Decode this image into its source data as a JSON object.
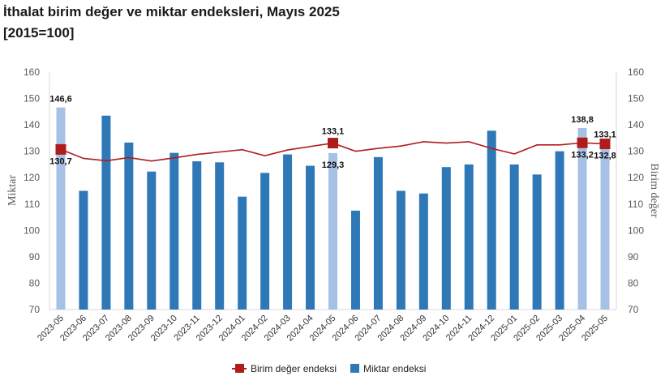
{
  "title": "İthalat birim değer ve miktar endeksleri, Mayıs 2025",
  "subtitle": "[2015=100]",
  "chart_data": {
    "type": "bar",
    "categories": [
      "2023-05",
      "2023-06",
      "2023-07",
      "2023-08",
      "2023-09",
      "2023-10",
      "2023-11",
      "2023-12",
      "2024-01",
      "2024-02",
      "2024-03",
      "2024-04",
      "2024-05",
      "2024-06",
      "2024-07",
      "2024-08",
      "2024-09",
      "2024-10",
      "2024-11",
      "2024-12",
      "2025-01",
      "2025-02",
      "2025-03",
      "2025-04",
      "2025-05"
    ],
    "ylabel_left": "Miktar",
    "ylabel_right": "Birim değer",
    "ylim": [
      70,
      160
    ],
    "yticks": [
      "70",
      "80",
      "90",
      "100",
      "110",
      "120",
      "130",
      "140",
      "150",
      "160"
    ],
    "grid": false,
    "legend_position": "bottom",
    "series": [
      {
        "name": "Birim değer endeksi",
        "type": "line",
        "color": "#b01c1c",
        "values": [
          130.7,
          127.3,
          126.4,
          127.6,
          126.3,
          127.5,
          128.8,
          129.7,
          130.6,
          128.3,
          130.5,
          131.8,
          133.1,
          130.0,
          131.1,
          132.0,
          133.6,
          133.1,
          133.6,
          131.1,
          129.0,
          132.4,
          132.4,
          133.2,
          132.8
        ],
        "markers": [
          0,
          12,
          23,
          24
        ]
      },
      {
        "name": "Miktar endeksi",
        "type": "bar",
        "color": "#2f78b8",
        "highlight_color": "#a7c1e6",
        "values": [
          146.6,
          115.0,
          143.5,
          133.3,
          122.3,
          129.4,
          126.2,
          125.8,
          112.8,
          121.8,
          128.8,
          124.5,
          129.3,
          107.5,
          127.8,
          115.0,
          114.0,
          124.0,
          125.0,
          137.8,
          125.0,
          121.2,
          130.0,
          138.8,
          133.1
        ],
        "highlighted": [
          0,
          12,
          23,
          24
        ]
      }
    ],
    "data_labels": [
      {
        "series": "Miktar endeksi",
        "index": 0,
        "text": "146,6"
      },
      {
        "series": "Birim değer endeksi",
        "index": 0,
        "text": "130,7"
      },
      {
        "series": "Birim değer endeksi",
        "index": 12,
        "text": "133,1"
      },
      {
        "series": "Miktar endeksi",
        "index": 12,
        "text": "129,3"
      },
      {
        "series": "Miktar endeksi",
        "index": 23,
        "text": "138,8"
      },
      {
        "series": "Birim değer endeksi",
        "index": 23,
        "text": "133,2"
      },
      {
        "series": "Miktar endeksi",
        "index": 24,
        "text": "133,1"
      },
      {
        "series": "Birim değer endeksi",
        "index": 24,
        "text": "132,8"
      }
    ]
  }
}
